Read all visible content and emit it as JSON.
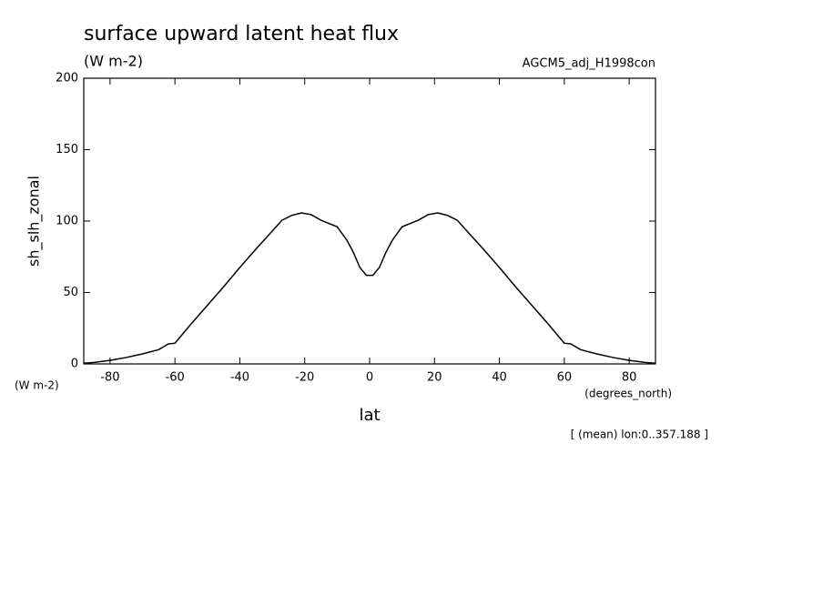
{
  "chart_data": {
    "type": "line",
    "title": "surface upward latent heat flux",
    "units": "(W m-2)",
    "run_name": "AGCM5_adj_H1998con",
    "ylabel": "sh_slh_zonal",
    "y_units": "(W m-2)",
    "xlabel": "lat",
    "x_units": "(degrees_north)",
    "note": "[ (mean) lon:0..357.188 ]",
    "x": [
      -88,
      -85,
      -80,
      -75,
      -70,
      -65,
      -62,
      -60,
      -55,
      -50,
      -45,
      -40,
      -35,
      -30,
      -27,
      -24,
      -21,
      -18,
      -15,
      -10,
      -7,
      -5,
      -3,
      -1,
      1,
      3,
      5,
      7,
      10,
      15,
      18,
      21,
      24,
      27,
      30,
      35,
      40,
      45,
      50,
      55,
      60,
      62,
      65,
      70,
      75,
      80,
      85,
      88
    ],
    "series": [
      {
        "name": "sh_slh_zonal",
        "color": "#000000",
        "values": [
          0.5,
          1,
          2.5,
          4.5,
          7,
          10,
          14,
          14.5,
          28,
          41,
          54,
          67.5,
          80.5,
          93,
          100.6,
          104,
          105.7,
          104.5,
          100.6,
          96,
          86.6,
          78,
          67.5,
          62,
          62,
          67.5,
          78,
          86.6,
          96,
          100.6,
          104.5,
          105.7,
          104,
          100.6,
          93,
          80.5,
          67.5,
          54,
          41,
          28,
          14.5,
          14,
          10,
          7,
          4.5,
          2.5,
          1,
          0.5
        ]
      }
    ],
    "xlim": [
      -88.1,
      88.1
    ],
    "ylim": [
      0,
      200
    ],
    "xticks": [
      -80,
      -60,
      -40,
      -20,
      0,
      20,
      40,
      60,
      80
    ],
    "yticks": [
      0,
      50,
      100,
      150,
      200
    ]
  }
}
